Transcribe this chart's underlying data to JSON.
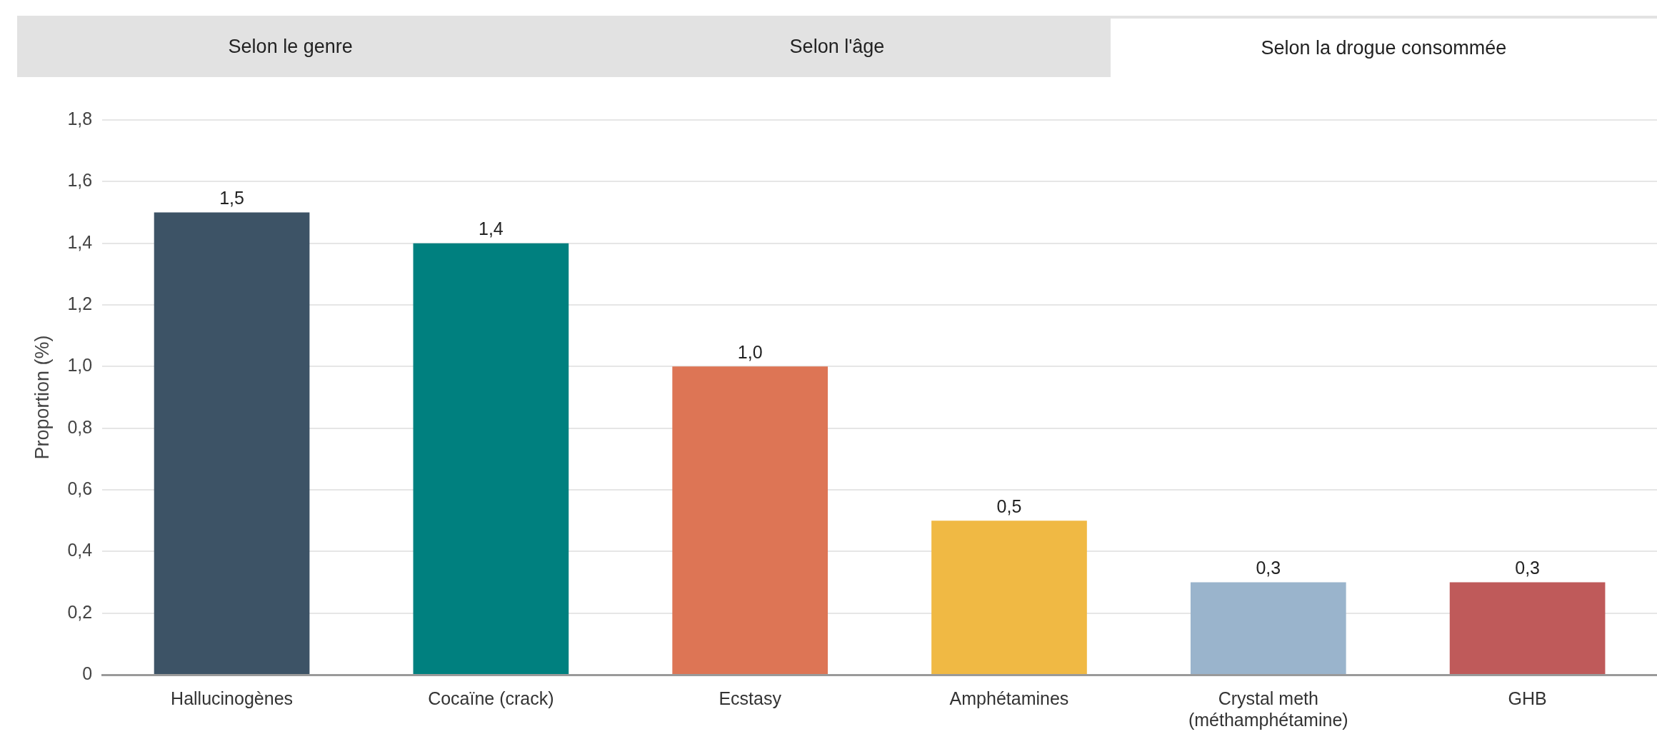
{
  "chart_data": {
    "type": "bar",
    "ylabel": "Proportion (%)",
    "annotations": [
      "Selon le genre",
      "Selon l'âge",
      "Selon la drogue consommée"
    ],
    "categories": [
      "Hallucinogènes",
      "Cocaïne (crack)",
      "Ecstasy",
      "Amphétamines",
      "Crystal meth\n(méthamphétamine)",
      "GHB"
    ],
    "values": [
      1.5,
      1.4,
      1.0,
      0.5,
      0.3,
      0.3
    ],
    "colors": [
      "#3d5366",
      "#00807f",
      "#dd7555",
      "#f0b944",
      "#9ab4cc",
      "#bf5a5a"
    ],
    "value_labels": [
      "1,5",
      "1,4",
      "1,0",
      "0,5",
      "0,3",
      "0,3"
    ],
    "ylim": [
      0,
      1.8
    ],
    "yticks": [
      {
        "value": 0,
        "label": "0"
      },
      {
        "value": 0.2,
        "label": "0,2"
      },
      {
        "value": 0.4,
        "label": "0,4"
      },
      {
        "value": 0.6,
        "label": "0,6"
      },
      {
        "value": 0.8,
        "label": "0,8"
      },
      {
        "value": 1.0,
        "label": "1,0"
      },
      {
        "value": 1.2,
        "label": "1,2"
      },
      {
        "value": 1.4,
        "label": "1,4"
      },
      {
        "value": 1.6,
        "label": "1,6"
      },
      {
        "value": 1.8,
        "label": "1,8"
      }
    ],
    "grid": "y",
    "legend": false
  }
}
